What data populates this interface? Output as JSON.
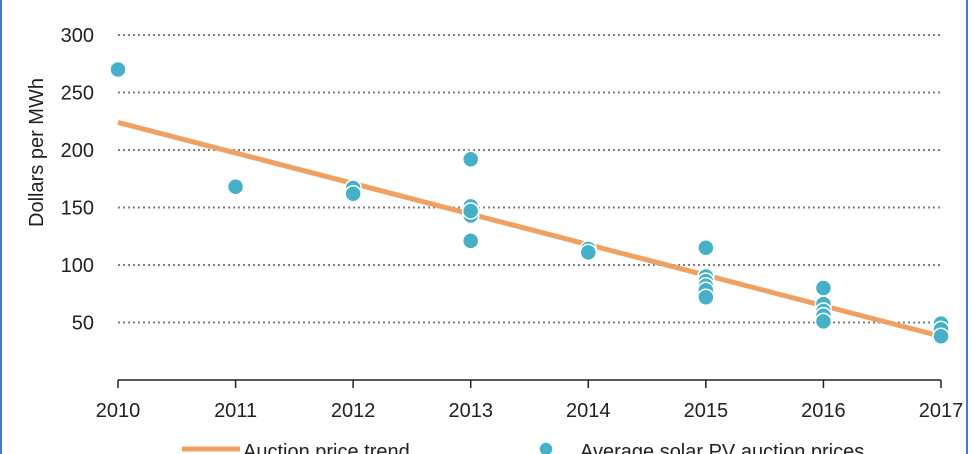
{
  "chart_data": {
    "type": "scatter",
    "xlabel": "",
    "ylabel": "Dollars per MWh",
    "xlim": [
      2010,
      2017
    ],
    "ylim": [
      0,
      300
    ],
    "x_ticks": [
      "2010",
      "2011",
      "2012",
      "2013",
      "2014",
      "2015",
      "2016",
      "2017"
    ],
    "y_ticks": [
      "50",
      "100",
      "150",
      "200",
      "250",
      "300"
    ],
    "grid": "horizontal-dotted",
    "legend_position": "bottom",
    "colors": {
      "trend": "#f0a060",
      "points": "#45b0c8",
      "grid": "#7f7f7f",
      "axis": "#222222"
    },
    "series": [
      {
        "name": "Auction price trend",
        "kind": "line",
        "x": [
          2010,
          2017
        ],
        "y": [
          224,
          38
        ]
      },
      {
        "name": "Average solar PV auction prices",
        "kind": "scatter",
        "x": [
          2010,
          2011,
          2012,
          2012,
          2013,
          2013,
          2013,
          2013,
          2013,
          2014,
          2014,
          2015,
          2015,
          2015,
          2015,
          2015,
          2015,
          2016,
          2016,
          2016,
          2016,
          2016,
          2017,
          2017,
          2017
        ],
        "y": [
          270,
          168,
          167,
          162,
          192,
          151,
          143,
          147,
          121,
          114,
          111,
          115,
          90,
          86,
          82,
          78,
          72,
          80,
          66,
          60,
          56,
          51,
          49,
          44,
          38
        ]
      }
    ]
  }
}
